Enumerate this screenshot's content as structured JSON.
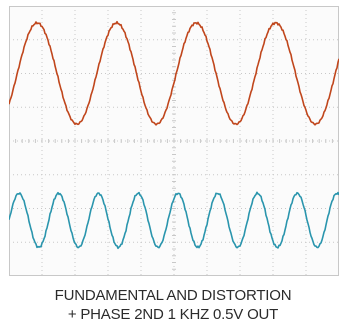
{
  "caption": {
    "line1": "FUNDAMENTAL AND DISTORTION",
    "line2": "+ PHASE 2ND   1 KHZ   0.5V OUT"
  },
  "colors": {
    "fundamental": "#c0461c",
    "distortion": "#2a95ad",
    "grid": "#c8c8c8",
    "background": "#fbfbfb"
  },
  "chart_data": {
    "type": "line",
    "title": "",
    "xlabel": "",
    "ylabel": "",
    "grid": true,
    "grid_divisions": {
      "x": 10,
      "y": 8
    },
    "xlim": [
      0,
      10
    ],
    "ylim": [
      -4,
      4
    ],
    "series": [
      {
        "color": "#c0461c",
        "frequency_cycles_per_div": 0.415,
        "center_div": 2.0,
        "amplitude_div": 1.5,
        "phase_offset_div": 0.25
      },
      {
        "color": "#2a95ad",
        "frequency_cycles_per_div": 0.83,
        "center_div": -2.35,
        "amplitude_div": 0.8,
        "phase_offset_div": 0.0
      }
    ]
  }
}
